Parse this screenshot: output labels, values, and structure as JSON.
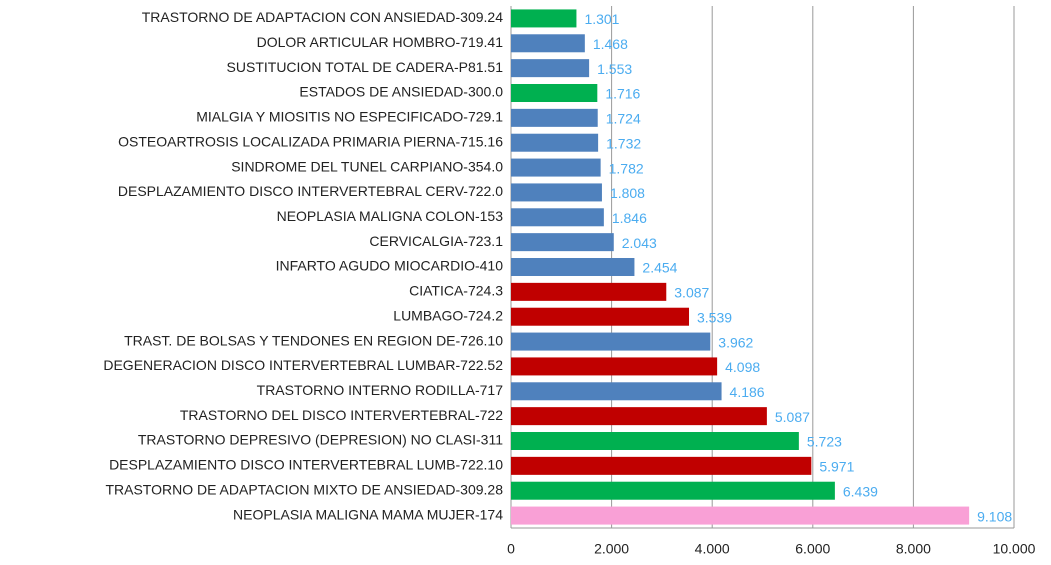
{
  "chart_data": {
    "type": "barh",
    "categories": [
      "TRASTORNO DE ADAPTACION CON ANSIEDAD-309.24",
      "DOLOR ARTICULAR HOMBRO-719.41",
      "SUSTITUCION TOTAL DE CADERA-P81.51",
      "ESTADOS DE ANSIEDAD-300.0",
      "MIALGIA Y MIOSITIS NO ESPECIFICADO-729.1",
      "OSTEOARTROSIS LOCALIZADA PRIMARIA PIERNA-715.16",
      "SINDROME DEL TUNEL CARPIANO-354.0",
      "DESPLAZAMIENTO DISCO INTERVERTEBRAL CERV-722.0",
      "NEOPLASIA MALIGNA COLON-153",
      "CERVICALGIA-723.1",
      "INFARTO AGUDO MIOCARDIO-410",
      "CIATICA-724.3",
      "LUMBAGO-724.2",
      "TRAST. DE BOLSAS Y TENDONES EN REGION DE-726.10",
      "DEGENERACION DISCO INTERVERTEBRAL LUMBAR-722.52",
      "TRASTORNO INTERNO RODILLA-717",
      "TRASTORNO DEL DISCO INTERVERTEBRAL-722",
      "TRASTORNO DEPRESIVO (DEPRESION) NO CLASI-311",
      "DESPLAZAMIENTO DISCO INTERVERTEBRAL LUMB-722.10",
      "TRASTORNO DE ADAPTACION MIXTO DE ANSIEDAD-309.28",
      "NEOPLASIA MALIGNA MAMA MUJER-174"
    ],
    "values": [
      1301,
      1468,
      1553,
      1716,
      1724,
      1732,
      1782,
      1808,
      1846,
      2043,
      2454,
      3087,
      3539,
      3962,
      4098,
      4186,
      5087,
      5723,
      5971,
      6439,
      9108
    ],
    "value_labels": [
      "1.301",
      "1.468",
      "1.553",
      "1.716",
      "1.724",
      "1.732",
      "1.782",
      "1.808",
      "1.846",
      "2.043",
      "2.454",
      "3.087",
      "3.539",
      "3.962",
      "4.098",
      "4.186",
      "5.087",
      "5.723",
      "5.971",
      "6.439",
      "9.108"
    ],
    "colors": [
      "#00b050",
      "#4f81bd",
      "#4f81bd",
      "#00b050",
      "#4f81bd",
      "#4f81bd",
      "#4f81bd",
      "#4f81bd",
      "#4f81bd",
      "#4f81bd",
      "#4f81bd",
      "#c00000",
      "#c00000",
      "#4f81bd",
      "#c00000",
      "#4f81bd",
      "#c00000",
      "#00b050",
      "#c00000",
      "#00b050",
      "#f9a0d6"
    ],
    "value_label_color": "#4bacf0",
    "xlim": [
      0,
      10000
    ],
    "xticks": [
      0,
      {
        "value": 2000,
        "label": "2.000"
      },
      {
        "value": 4000,
        "label": "4.000"
      },
      {
        "value": 6000,
        "label": "6.000"
      },
      {
        "value": 8000,
        "label": "8.000"
      },
      {
        "value": 10000,
        "label": "10.000"
      }
    ],
    "grid": true
  }
}
